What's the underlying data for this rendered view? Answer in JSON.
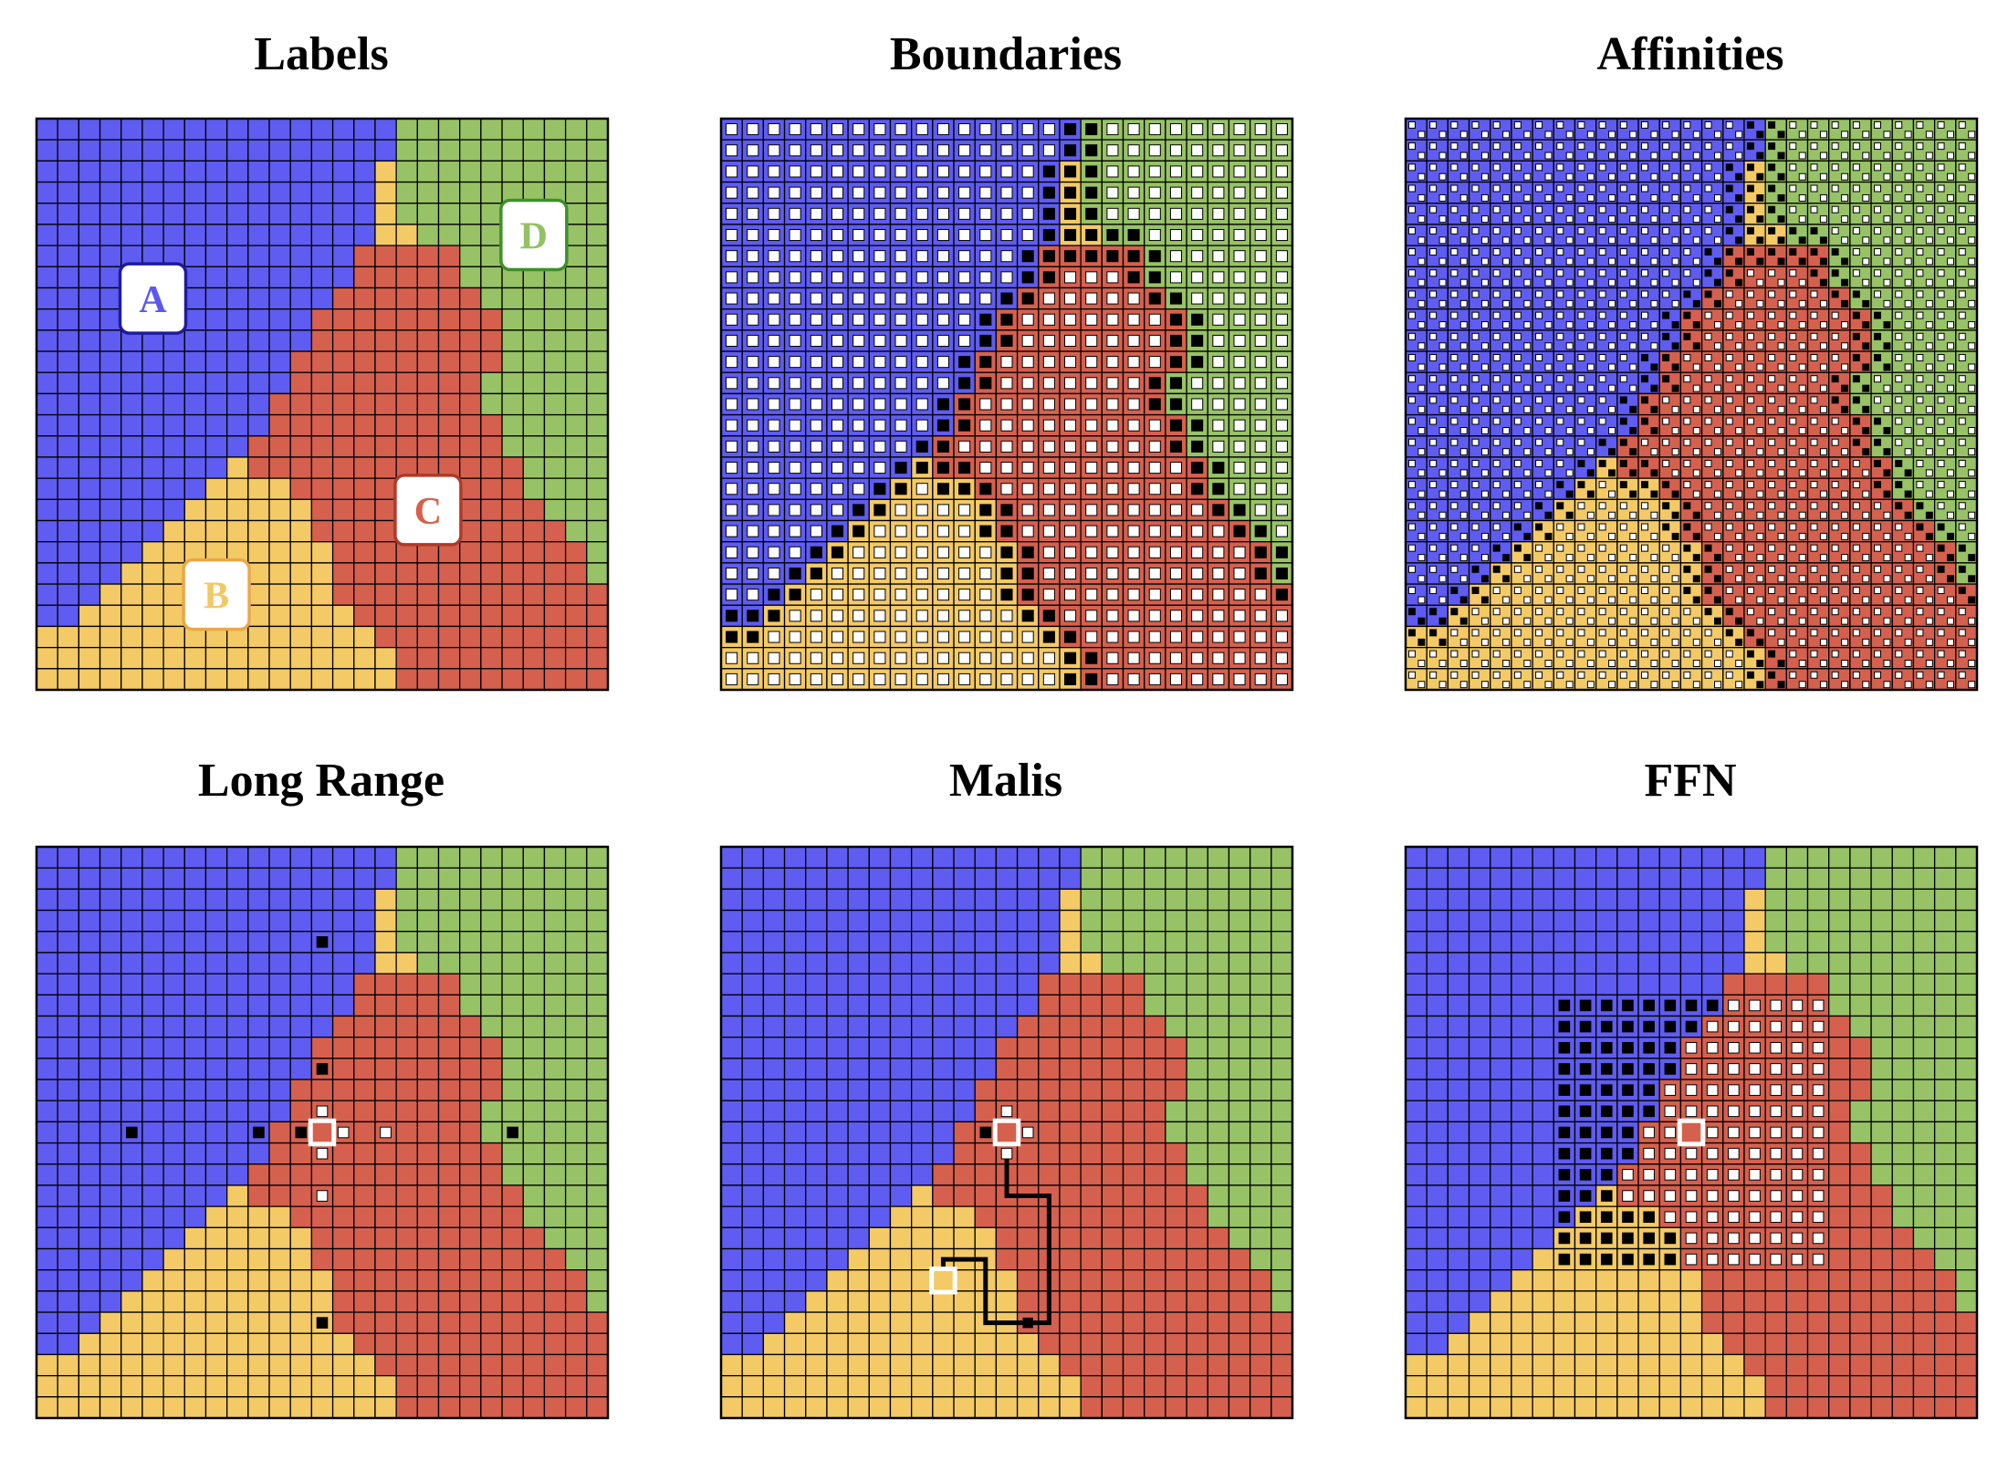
{
  "panels": [
    {
      "id": "labels",
      "title": "Labels"
    },
    {
      "id": "boundaries",
      "title": "Boundaries"
    },
    {
      "id": "affinities",
      "title": "Affinities"
    },
    {
      "id": "long_range",
      "title": "Long Range"
    },
    {
      "id": "malis",
      "title": "Malis"
    },
    {
      "id": "ffn",
      "title": "FFN"
    }
  ],
  "region_labels": [
    {
      "id": "A",
      "text": "A",
      "color": "#5B58F0",
      "border": "#1E1B9E"
    },
    {
      "id": "B",
      "text": "B",
      "color": "#F2C865",
      "border": "#E9A74A"
    },
    {
      "id": "C",
      "text": "C",
      "color": "#D6604D",
      "border": "#B03A28"
    },
    {
      "id": "D",
      "text": "D",
      "color": "#94C164",
      "border": "#3F8F2A"
    }
  ],
  "colors": {
    "A": "#5F5CF2",
    "B": "#F4CA66",
    "C": "#D6604E",
    "D": "#97C366",
    "grid_line": "#000000",
    "marker_dark": "#000000",
    "marker_light": "#ffffff"
  },
  "grid": {
    "cols": 27,
    "rows": 27
  }
}
